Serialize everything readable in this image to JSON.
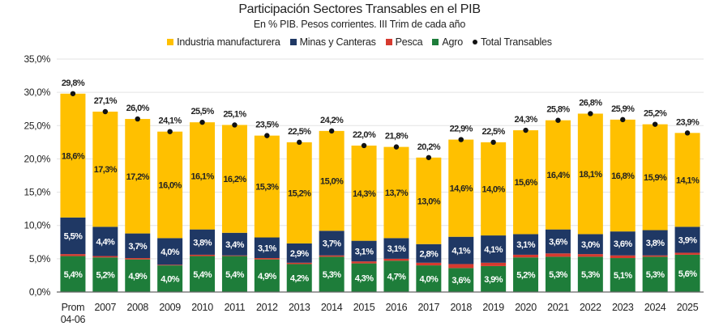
{
  "chart_data": {
    "type": "bar",
    "stacked": true,
    "title": "Participación Sectores Transables en el PIB",
    "subtitle": "En % PIB. Pesos corrientes. III Trim de cada año",
    "categories": [
      "Prom 04-06",
      "2007",
      "2008",
      "2009",
      "2010",
      "2011",
      "2012",
      "2013",
      "2014",
      "2015",
      "2016",
      "2017",
      "2018",
      "2019",
      "2020",
      "2021",
      "2022",
      "2023",
      "2024",
      "2025"
    ],
    "series": [
      {
        "name": "Agro",
        "color": "#1e7d3a",
        "values": [
          5.4,
          5.2,
          4.9,
          4.0,
          5.4,
          5.4,
          4.9,
          4.2,
          5.3,
          4.3,
          4.7,
          4.0,
          3.6,
          3.9,
          5.2,
          5.3,
          5.3,
          5.1,
          5.3,
          5.6
        ],
        "labeled": true
      },
      {
        "name": "Pesca",
        "color": "#d63a2f",
        "values": [
          0.3,
          0.2,
          0.2,
          0.1,
          0.2,
          0.1,
          0.2,
          0.2,
          0.2,
          0.3,
          0.3,
          0.4,
          0.6,
          0.5,
          0.4,
          0.5,
          0.4,
          0.4,
          0.2,
          0.3
        ],
        "labeled": false
      },
      {
        "name": "Minas y Canteras",
        "color": "#1f3864",
        "values": [
          5.5,
          4.4,
          3.7,
          4.0,
          3.8,
          3.4,
          3.1,
          2.9,
          3.7,
          3.1,
          3.1,
          2.8,
          4.1,
          4.1,
          3.1,
          3.6,
          3.0,
          3.6,
          3.8,
          3.9
        ],
        "labeled": true
      },
      {
        "name": "Industria manufacturera",
        "color": "#ffc000",
        "values": [
          18.6,
          17.3,
          17.2,
          16.0,
          16.1,
          16.2,
          15.3,
          15.2,
          15.0,
          14.3,
          13.7,
          13.0,
          14.6,
          14.0,
          15.6,
          16.4,
          18.1,
          16.8,
          15.9,
          14.1
        ],
        "labeled": true
      }
    ],
    "total": {
      "name": "Total Transables",
      "values": [
        29.8,
        27.1,
        26.0,
        24.1,
        25.5,
        25.1,
        23.5,
        22.5,
        24.2,
        22.0,
        21.8,
        20.2,
        22.9,
        22.5,
        24.3,
        25.8,
        26.8,
        25.9,
        25.2,
        23.9
      ]
    },
    "yticks": [
      "0,0%",
      "5,0%",
      "10,0%",
      "15,0%",
      "20,0%",
      "25,0%",
      "30,0%",
      "35,0%"
    ],
    "ylim": [
      0,
      35
    ],
    "grid": true,
    "legend": "top"
  }
}
